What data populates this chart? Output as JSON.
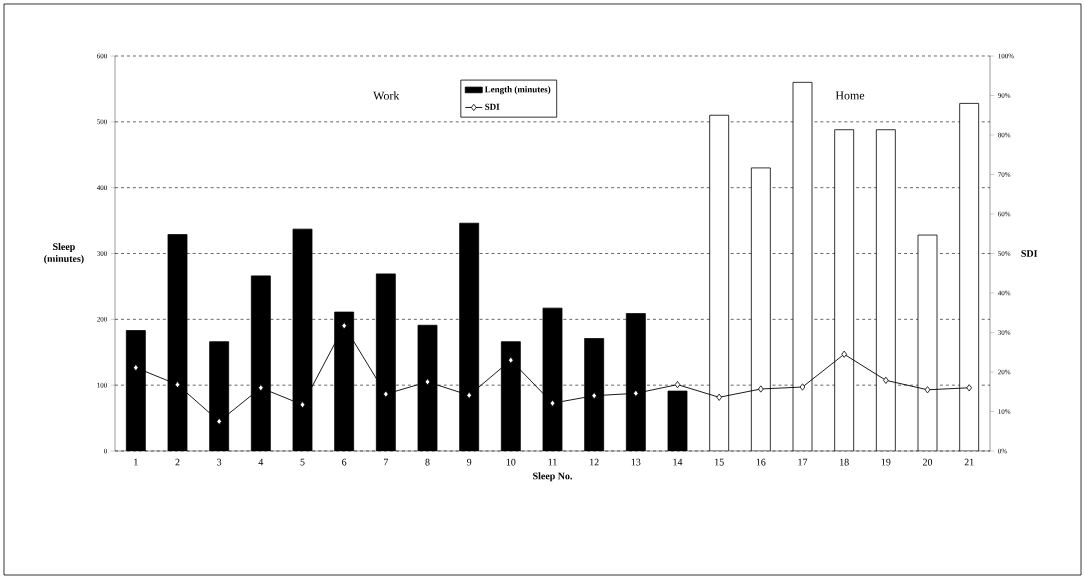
{
  "chart_data": {
    "type": "bar",
    "categories": [
      "1",
      "2",
      "3",
      "4",
      "5",
      "6",
      "7",
      "8",
      "9",
      "10",
      "11",
      "12",
      "13",
      "14",
      "15",
      "16",
      "17",
      "18",
      "19",
      "20",
      "21"
    ],
    "series": [
      {
        "name": "Length (minutes)",
        "colors": [
          "#000000",
          "#000000",
          "#000000",
          "#000000",
          "#000000",
          "#000000",
          "#000000",
          "#000000",
          "#000000",
          "#000000",
          "#000000",
          "#000000",
          "#000000",
          "#000000",
          "#ffffff",
          "#ffffff",
          "#ffffff",
          "#ffffff",
          "#ffffff",
          "#ffffff",
          "#ffffff"
        ],
        "values": [
          183,
          329,
          166,
          266,
          337,
          211,
          269,
          191,
          346,
          166,
          217,
          171,
          209,
          91,
          510,
          430,
          560,
          488,
          488,
          328,
          528
        ]
      },
      {
        "name": "SDI",
        "type": "line",
        "axis": "y2",
        "color": "#000000",
        "marker": "diamond",
        "values": [
          21.1,
          16.8,
          7.5,
          16.0,
          11.7,
          31.7,
          14.4,
          17.5,
          14.1,
          23.0,
          12.1,
          14.0,
          14.6,
          16.8,
          13.6,
          15.7,
          16.2,
          24.5,
          17.9,
          15.5,
          16.0
        ]
      }
    ],
    "xlabel": "Sleep No.",
    "ylabel": "Sleep (minutes)",
    "y2label": "SDI",
    "ylim": [
      0,
      600
    ],
    "yticks": [
      0,
      100,
      200,
      300,
      400,
      500,
      600
    ],
    "y2lim": [
      0,
      100
    ],
    "y2ticks": [
      {
        "value": 0,
        "label": "0%"
      },
      {
        "value": 10,
        "label": "10%"
      },
      {
        "value": 20,
        "label": "20%"
      },
      {
        "value": 30,
        "label": "30%"
      },
      {
        "value": 40,
        "label": "40%"
      },
      {
        "value": 50,
        "label": "50%"
      },
      {
        "value": 60,
        "label": "60%"
      },
      {
        "value": 70,
        "label": "70%"
      },
      {
        "value": 80,
        "label": "80%"
      },
      {
        "value": 90,
        "label": "90%"
      },
      {
        "value": 100,
        "label": "100%"
      }
    ],
    "grid": "y",
    "legend": "top",
    "annotations": [
      "Work",
      "Home"
    ]
  }
}
